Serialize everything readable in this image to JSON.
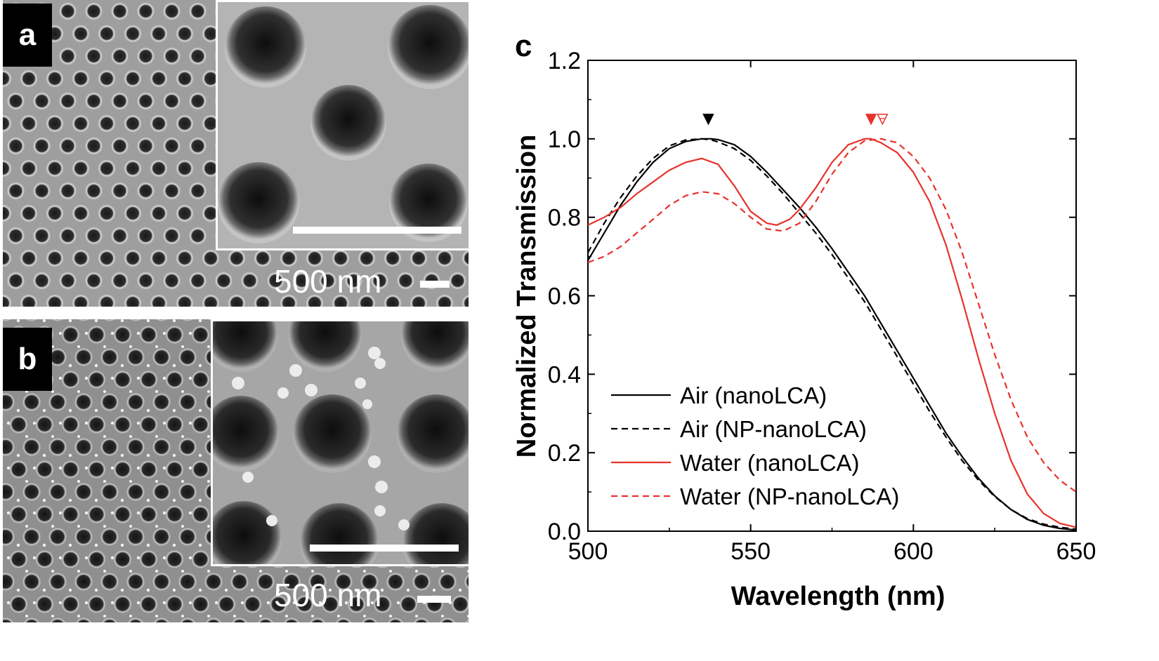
{
  "panels": {
    "a": {
      "label": "a",
      "scale_text": "500 nm"
    },
    "b": {
      "label": "b",
      "scale_text": "500 nm"
    },
    "c": {
      "label": "c"
    }
  },
  "chart_data": {
    "type": "line",
    "xlabel": "Wavelength (nm)",
    "ylabel": "Normalized Transmission",
    "xlim": [
      500,
      650
    ],
    "ylim": [
      0.0,
      1.2
    ],
    "xticks": [
      500,
      550,
      600,
      650
    ],
    "xtick_labels": [
      "500",
      "550",
      "600",
      "650"
    ],
    "yticks": [
      0.0,
      0.2,
      0.4,
      0.6,
      0.8,
      1.0,
      1.2
    ],
    "ytick_labels": [
      "0.0",
      "0.2",
      "0.4",
      "0.6",
      "0.8",
      "1.0",
      "1.2"
    ],
    "grid": false,
    "legend_position": "bottom-left",
    "series": [
      {
        "name": "Air (nanoLCA)",
        "color": "#000000",
        "dash": "solid",
        "x": [
          500,
          505,
          510,
          515,
          520,
          525,
          530,
          535,
          538,
          540,
          545,
          550,
          555,
          560,
          565,
          570,
          575,
          580,
          585,
          590,
          595,
          600,
          605,
          610,
          615,
          620,
          625,
          630,
          635,
          640,
          645,
          650
        ],
        "y": [
          0.69,
          0.76,
          0.83,
          0.89,
          0.94,
          0.975,
          0.993,
          1.0,
          1.0,
          0.998,
          0.985,
          0.955,
          0.915,
          0.87,
          0.825,
          0.775,
          0.72,
          0.66,
          0.6,
          0.53,
          0.46,
          0.39,
          0.32,
          0.25,
          0.19,
          0.135,
          0.09,
          0.055,
          0.03,
          0.015,
          0.007,
          0.003
        ]
      },
      {
        "name": "Air (NP-nanoLCA)",
        "color": "#000000",
        "dash": "dashed",
        "x": [
          500,
          505,
          510,
          515,
          520,
          525,
          530,
          535,
          538,
          540,
          545,
          550,
          555,
          560,
          565,
          570,
          575,
          580,
          585,
          590,
          595,
          600,
          605,
          610,
          615,
          620,
          625,
          630,
          635,
          640,
          645,
          650
        ],
        "y": [
          0.71,
          0.785,
          0.85,
          0.905,
          0.95,
          0.982,
          0.997,
          1.0,
          0.997,
          0.992,
          0.975,
          0.945,
          0.905,
          0.86,
          0.81,
          0.76,
          0.705,
          0.645,
          0.585,
          0.515,
          0.445,
          0.375,
          0.305,
          0.24,
          0.18,
          0.13,
          0.088,
          0.055,
          0.032,
          0.018,
          0.01,
          0.005
        ]
      },
      {
        "name": "Water (nanoLCA)",
        "color": "#e8322c",
        "dash": "solid",
        "x": [
          500,
          505,
          510,
          515,
          520,
          525,
          530,
          535,
          540,
          545,
          550,
          555,
          558,
          562,
          565,
          570,
          575,
          580,
          585,
          587,
          590,
          595,
          600,
          605,
          610,
          615,
          620,
          625,
          630,
          635,
          640,
          645,
          650
        ],
        "y": [
          0.78,
          0.8,
          0.825,
          0.86,
          0.89,
          0.92,
          0.94,
          0.95,
          0.935,
          0.88,
          0.815,
          0.785,
          0.78,
          0.795,
          0.82,
          0.875,
          0.94,
          0.985,
          1.0,
          1.0,
          0.99,
          0.965,
          0.915,
          0.84,
          0.73,
          0.59,
          0.44,
          0.3,
          0.18,
          0.095,
          0.045,
          0.02,
          0.01
        ]
      },
      {
        "name": "Water (NP-nanoLCA)",
        "color": "#e8322c",
        "dash": "dashed",
        "x": [
          500,
          505,
          510,
          515,
          520,
          525,
          530,
          535,
          540,
          545,
          550,
          555,
          560,
          565,
          570,
          575,
          580,
          585,
          590,
          595,
          600,
          605,
          610,
          615,
          620,
          625,
          630,
          635,
          640,
          645,
          650
        ],
        "y": [
          0.685,
          0.7,
          0.725,
          0.76,
          0.795,
          0.83,
          0.855,
          0.865,
          0.86,
          0.835,
          0.8,
          0.77,
          0.765,
          0.785,
          0.84,
          0.91,
          0.965,
          0.995,
          1.0,
          0.99,
          0.955,
          0.9,
          0.82,
          0.71,
          0.58,
          0.45,
          0.335,
          0.24,
          0.175,
          0.13,
          0.1
        ]
      }
    ],
    "markers": [
      {
        "x": 537,
        "y": 1.05,
        "shape": "down-triangle-filled",
        "color": "#000000"
      },
      {
        "x": 587,
        "y": 1.05,
        "shape": "down-triangle-filled",
        "color": "#e8322c"
      },
      {
        "x": 590.5,
        "y": 1.05,
        "shape": "down-triangle-open",
        "color": "#e8322c"
      }
    ]
  }
}
